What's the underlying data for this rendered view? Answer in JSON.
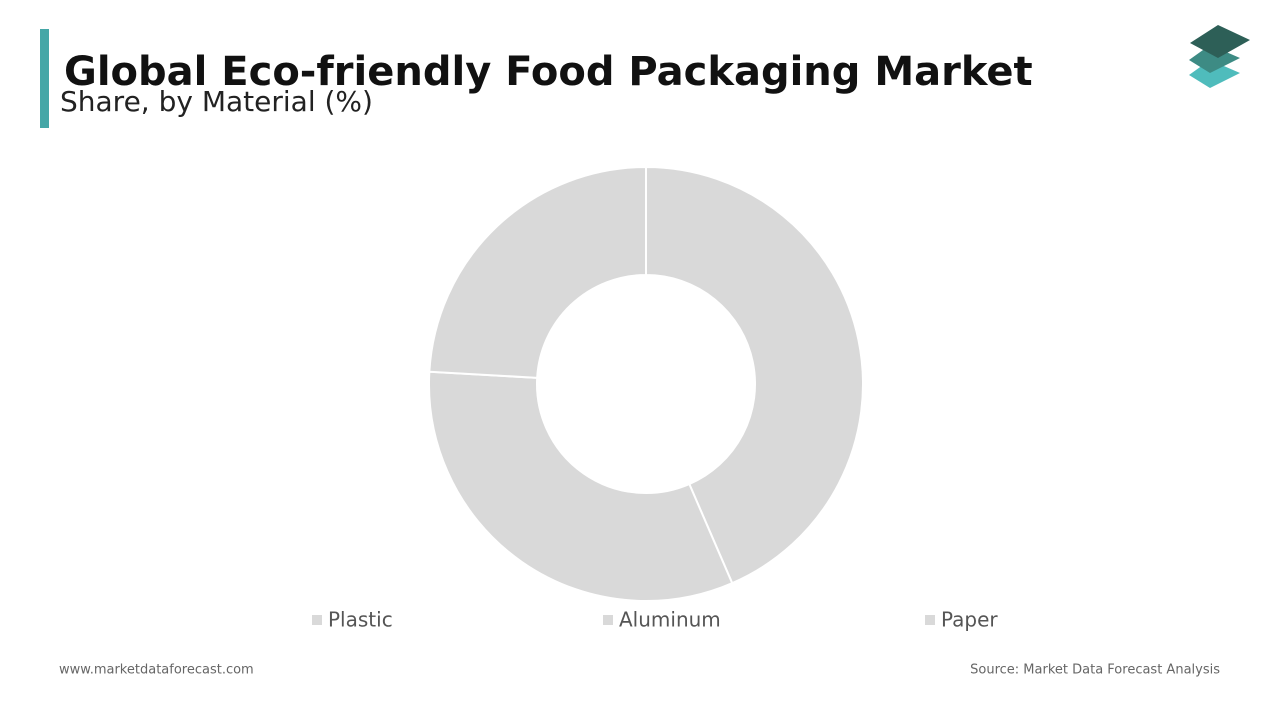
{
  "chart_data": {
    "type": "donut",
    "title": "Global Eco-friendly Food Packaging Market",
    "subtitle": "Share, by Material (%)",
    "categories": [
      "Plastic",
      "Aluminum",
      "Paper"
    ],
    "values": [
      43.5,
      32.4,
      24.1
    ],
    "colors": [
      "#d9d9d9",
      "#d9d9d9",
      "#d9d9d9"
    ],
    "legend": "bottom",
    "website": "www.marketdataforecast.com",
    "source": "Source: Market Data Forecast Analysis"
  }
}
